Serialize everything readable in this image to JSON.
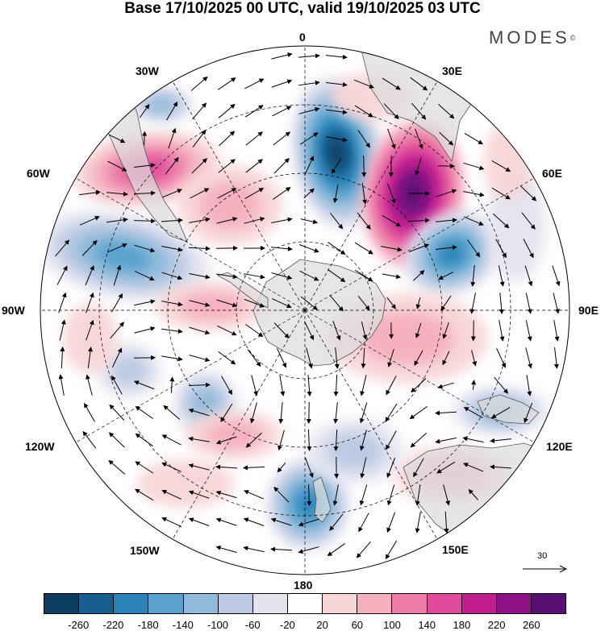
{
  "header": {
    "title": "Base 17/10/2025 00 UTC, valid 19/10/2025 03 UTC",
    "brand": "MODES",
    "brand_mark": "©"
  },
  "map": {
    "projection": "south polar stereographic",
    "longitude_labels": [
      "0",
      "30E",
      "60E",
      "90E",
      "120E",
      "150E",
      "180",
      "150W",
      "120W",
      "90W",
      "60W",
      "30W"
    ],
    "reference_vector_label": "30"
  },
  "colorbar": {
    "colors": [
      "#0b3d5e",
      "#165f8f",
      "#2a83ba",
      "#58a2cd",
      "#8fbadb",
      "#bccbe3",
      "#e3e4f0",
      "#ffffff",
      "#f8d5d6",
      "#f5b1c0",
      "#ec7ea9",
      "#e04c9b",
      "#c21d8e",
      "#8c1286",
      "#581173"
    ],
    "ticks": [
      "-260",
      "-220",
      "-180",
      "-140",
      "-100",
      "-60",
      "-20",
      "20",
      "60",
      "100",
      "140",
      "180",
      "220",
      "260"
    ]
  },
  "colors": {
    "land": "#dcdcdc",
    "land_edge": "#555555",
    "graticule": "#000000"
  }
}
